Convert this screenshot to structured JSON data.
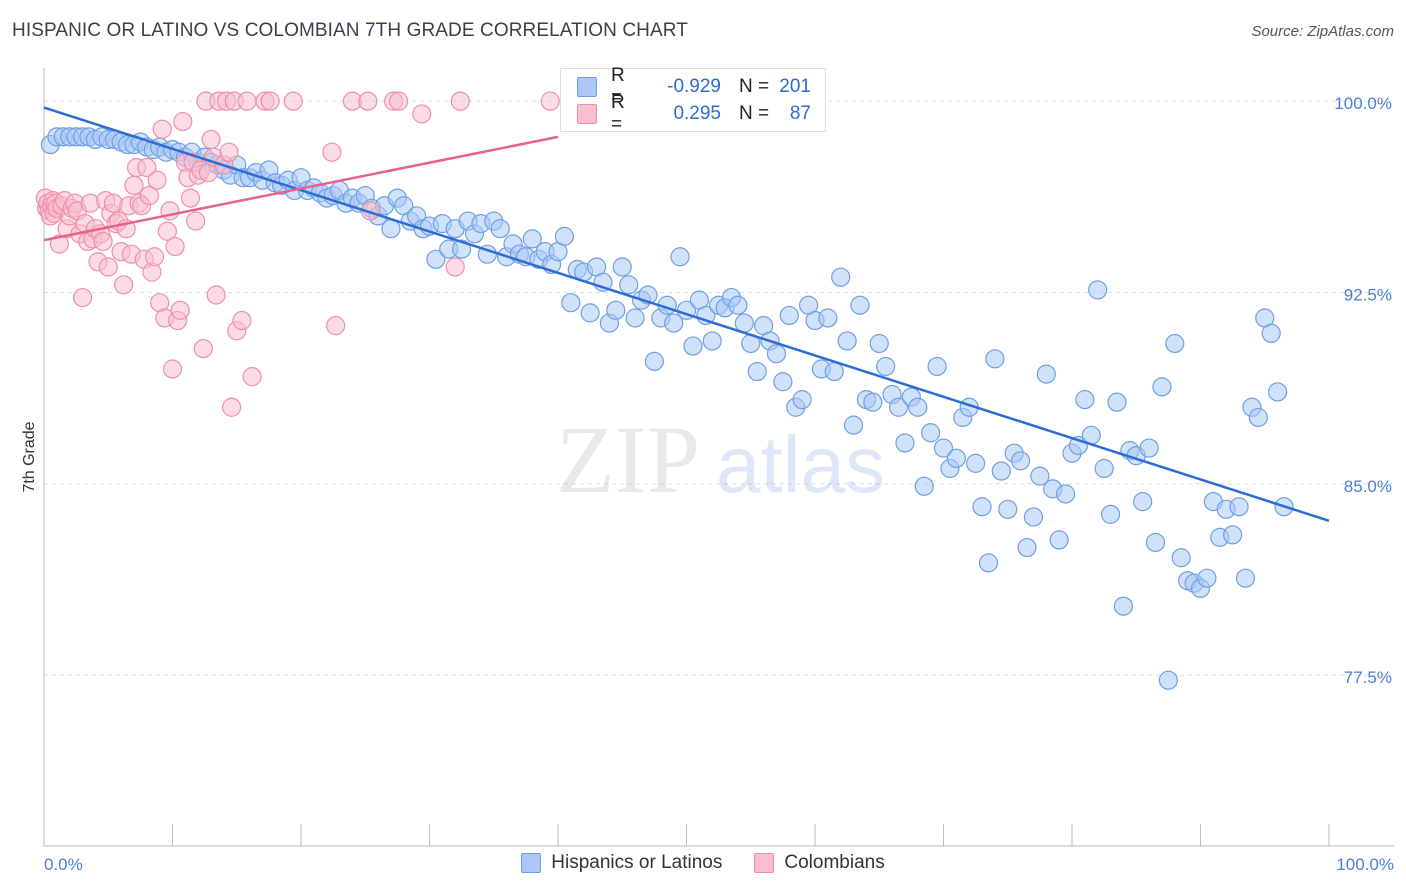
{
  "title": "HISPANIC OR LATINO VS COLOMBIAN 7TH GRADE CORRELATION CHART",
  "source": "Source: ZipAtlas.com",
  "watermark": {
    "zip": "ZIP",
    "atlas": "atlas"
  },
  "legend": {
    "rows": [
      {
        "r_label": "R =",
        "r_value": "-0.929",
        "n_label": "N =",
        "n_value": "201",
        "color": "#a9c8f5",
        "border": "#6f9fe3"
      },
      {
        "r_label": "R =",
        "r_value": "0.295",
        "n_label": "N =",
        "n_value": "87",
        "color": "#f8bfd0",
        "border": "#ee8fab"
      }
    ]
  },
  "bottom_legend": [
    {
      "label": "Hispanics or Latinos",
      "color": "#a9c8f5",
      "border": "#6f9fe3"
    },
    {
      "label": "Colombians",
      "color": "#f8bfd0",
      "border": "#ee8fab"
    }
  ],
  "chart_data": {
    "type": "scatter",
    "title": "HISPANIC OR LATINO VS COLOMBIAN 7TH GRADE CORRELATION CHART",
    "xlabel": "",
    "ylabel": "7th Grade",
    "xlim": [
      0,
      100
    ],
    "ylim": [
      70.8,
      101.3
    ],
    "x_tick_labels": [
      "0.0%",
      "100.0%"
    ],
    "y_ticks": [
      {
        "value": 100.0,
        "label": "100.0%"
      },
      {
        "value": 92.5,
        "label": "92.5%"
      },
      {
        "value": 85.0,
        "label": "85.0%"
      },
      {
        "value": 77.5,
        "label": "77.5%"
      }
    ],
    "grid": true,
    "series": [
      {
        "name": "Hispanics or Latinos",
        "color": "#a9c8f5",
        "stroke": "#6f9fe3",
        "trend": {
          "x": [
            0,
            100
          ],
          "y": [
            99.75,
            83.55
          ],
          "color": "#2d6cd3"
        },
        "points": [
          [
            0.5,
            98.3
          ],
          [
            1,
            98.6
          ],
          [
            1.5,
            98.6
          ],
          [
            2,
            98.6
          ],
          [
            2.5,
            98.6
          ],
          [
            3,
            98.6
          ],
          [
            3.5,
            98.6
          ],
          [
            4,
            98.5
          ],
          [
            4.5,
            98.6
          ],
          [
            5,
            98.5
          ],
          [
            5.5,
            98.5
          ],
          [
            6,
            98.4
          ],
          [
            6.5,
            98.3
          ],
          [
            7,
            98.3
          ],
          [
            7.5,
            98.4
          ],
          [
            8,
            98.2
          ],
          [
            8.5,
            98.1
          ],
          [
            9,
            98.2
          ],
          [
            9.5,
            98.0
          ],
          [
            10,
            98.1
          ],
          [
            10.5,
            98.0
          ],
          [
            11,
            97.8
          ],
          [
            11.5,
            98.0
          ],
          [
            12,
            97.6
          ],
          [
            12.5,
            97.8
          ],
          [
            13,
            97.6
          ],
          [
            13.5,
            97.5
          ],
          [
            14,
            97.3
          ],
          [
            14.5,
            97.1
          ],
          [
            15,
            97.5
          ],
          [
            15.5,
            97.0
          ],
          [
            16,
            97.0
          ],
          [
            16.5,
            97.2
          ],
          [
            17,
            96.9
          ],
          [
            17.5,
            97.3
          ],
          [
            18,
            96.8
          ],
          [
            18.5,
            96.7
          ],
          [
            19,
            96.9
          ],
          [
            19.5,
            96.5
          ],
          [
            20,
            97.0
          ],
          [
            20.5,
            96.5
          ],
          [
            21,
            96.6
          ],
          [
            21.5,
            96.4
          ],
          [
            22,
            96.2
          ],
          [
            22.5,
            96.3
          ],
          [
            23,
            96.5
          ],
          [
            23.5,
            96.0
          ],
          [
            24,
            96.2
          ],
          [
            24.5,
            96.0
          ],
          [
            25,
            96.3
          ],
          [
            25.5,
            95.8
          ],
          [
            26,
            95.5
          ],
          [
            26.5,
            95.9
          ],
          [
            27,
            95.0
          ],
          [
            27.5,
            96.2
          ],
          [
            28,
            95.9
          ],
          [
            28.5,
            95.3
          ],
          [
            29,
            95.5
          ],
          [
            29.5,
            95.0
          ],
          [
            30,
            95.1
          ],
          [
            30.5,
            93.8
          ],
          [
            31,
            95.2
          ],
          [
            31.5,
            94.2
          ],
          [
            32,
            95.0
          ],
          [
            32.5,
            94.2
          ],
          [
            33,
            95.3
          ],
          [
            33.5,
            94.8
          ],
          [
            34,
            95.2
          ],
          [
            34.5,
            94.0
          ],
          [
            35,
            95.3
          ],
          [
            35.5,
            95.0
          ],
          [
            36,
            93.9
          ],
          [
            36.5,
            94.4
          ],
          [
            37,
            94.0
          ],
          [
            37.5,
            93.9
          ],
          [
            38,
            94.6
          ],
          [
            38.5,
            93.8
          ],
          [
            39,
            94.1
          ],
          [
            39.5,
            93.6
          ],
          [
            40,
            94.1
          ],
          [
            40.5,
            94.7
          ],
          [
            41,
            92.1
          ],
          [
            41.5,
            93.4
          ],
          [
            42,
            93.3
          ],
          [
            42.5,
            91.7
          ],
          [
            43,
            93.5
          ],
          [
            43.5,
            92.9
          ],
          [
            44,
            91.3
          ],
          [
            44.5,
            91.8
          ],
          [
            45,
            93.5
          ],
          [
            45.5,
            92.8
          ],
          [
            46,
            91.5
          ],
          [
            46.5,
            92.2
          ],
          [
            47,
            92.4
          ],
          [
            47.5,
            89.8
          ],
          [
            48,
            91.5
          ],
          [
            48.5,
            92.0
          ],
          [
            49,
            91.3
          ],
          [
            49.5,
            93.9
          ],
          [
            50,
            91.8
          ],
          [
            50.5,
            90.4
          ],
          [
            51,
            92.2
          ],
          [
            51.5,
            91.6
          ],
          [
            52,
            90.6
          ],
          [
            52.5,
            92.0
          ],
          [
            53,
            91.9
          ],
          [
            53.5,
            92.3
          ],
          [
            54,
            92.0
          ],
          [
            54.5,
            91.3
          ],
          [
            55,
            90.5
          ],
          [
            55.5,
            89.4
          ],
          [
            56,
            91.2
          ],
          [
            56.5,
            90.6
          ],
          [
            57,
            90.1
          ],
          [
            57.5,
            89.0
          ],
          [
            58,
            91.6
          ],
          [
            58.5,
            88.0
          ],
          [
            59,
            88.3
          ],
          [
            59.5,
            92.0
          ],
          [
            60,
            91.4
          ],
          [
            60.5,
            89.5
          ],
          [
            61,
            91.5
          ],
          [
            61.5,
            89.4
          ],
          [
            62,
            93.1
          ],
          [
            62.5,
            90.6
          ],
          [
            63,
            87.3
          ],
          [
            63.5,
            92.0
          ],
          [
            64,
            88.3
          ],
          [
            64.5,
            88.2
          ],
          [
            65,
            90.5
          ],
          [
            65.5,
            89.6
          ],
          [
            66,
            88.5
          ],
          [
            66.5,
            88.0
          ],
          [
            67,
            86.6
          ],
          [
            67.5,
            88.4
          ],
          [
            68,
            88.0
          ],
          [
            68.5,
            84.9
          ],
          [
            69,
            87.0
          ],
          [
            69.5,
            89.6
          ],
          [
            70,
            86.4
          ],
          [
            70.5,
            85.6
          ],
          [
            71,
            86.0
          ],
          [
            71.5,
            87.6
          ],
          [
            72,
            88.0
          ],
          [
            72.5,
            85.8
          ],
          [
            73,
            84.1
          ],
          [
            73.5,
            81.9
          ],
          [
            74,
            89.9
          ],
          [
            74.5,
            85.5
          ],
          [
            75,
            84.0
          ],
          [
            75.5,
            86.2
          ],
          [
            76,
            85.9
          ],
          [
            76.5,
            82.5
          ],
          [
            77,
            83.7
          ],
          [
            77.5,
            85.3
          ],
          [
            78,
            89.3
          ],
          [
            78.5,
            84.8
          ],
          [
            79,
            82.8
          ],
          [
            79.5,
            84.6
          ],
          [
            80,
            86.2
          ],
          [
            80.5,
            86.5
          ],
          [
            81,
            88.3
          ],
          [
            81.5,
            86.9
          ],
          [
            82,
            92.6
          ],
          [
            82.5,
            85.6
          ],
          [
            83,
            83.8
          ],
          [
            83.5,
            88.2
          ],
          [
            84,
            80.2
          ],
          [
            84.5,
            86.3
          ],
          [
            85,
            86.1
          ],
          [
            85.5,
            84.3
          ],
          [
            86,
            86.4
          ],
          [
            86.5,
            82.7
          ],
          [
            87,
            88.8
          ],
          [
            87.5,
            77.3
          ],
          [
            88,
            90.5
          ],
          [
            88.5,
            82.1
          ],
          [
            89,
            81.2
          ],
          [
            89.5,
            81.1
          ],
          [
            90,
            80.9
          ],
          [
            90.5,
            81.3
          ],
          [
            91,
            84.3
          ],
          [
            91.5,
            82.9
          ],
          [
            92,
            84.0
          ],
          [
            92.5,
            83.0
          ],
          [
            93,
            84.1
          ],
          [
            93.5,
            81.3
          ],
          [
            94,
            88.0
          ],
          [
            94.5,
            87.6
          ],
          [
            95,
            91.5
          ],
          [
            95.5,
            90.9
          ],
          [
            96,
            88.6
          ],
          [
            96.5,
            84.1
          ]
        ]
      },
      {
        "name": "Colombians",
        "color": "#f8bfd0",
        "stroke": "#ee8fab",
        "trend": {
          "x": [
            0,
            40
          ],
          "y": [
            94.55,
            98.6
          ],
          "color": "#e8618a"
        },
        "points": [
          [
            0.1,
            96.2
          ],
          [
            0.2,
            95.8
          ],
          [
            0.3,
            96.0
          ],
          [
            0.4,
            95.7
          ],
          [
            0.5,
            95.5
          ],
          [
            0.6,
            95.9
          ],
          [
            0.7,
            96.1
          ],
          [
            0.8,
            95.6
          ],
          [
            0.9,
            96.0
          ],
          [
            1.0,
            95.8
          ],
          [
            1.2,
            94.4
          ],
          [
            1.4,
            95.9
          ],
          [
            1.6,
            96.1
          ],
          [
            1.8,
            95.0
          ],
          [
            2.0,
            95.5
          ],
          [
            2.2,
            95.8
          ],
          [
            2.4,
            96.0
          ],
          [
            2.6,
            95.7
          ],
          [
            2.8,
            94.8
          ],
          [
            3.0,
            92.3
          ],
          [
            3.2,
            95.2
          ],
          [
            3.4,
            94.5
          ],
          [
            3.6,
            96.0
          ],
          [
            3.8,
            94.6
          ],
          [
            4.0,
            95.0
          ],
          [
            4.2,
            93.7
          ],
          [
            4.4,
            94.8
          ],
          [
            4.6,
            94.5
          ],
          [
            4.8,
            96.1
          ],
          [
            5.0,
            93.5
          ],
          [
            5.2,
            95.6
          ],
          [
            5.4,
            96.0
          ],
          [
            5.6,
            95.2
          ],
          [
            5.8,
            95.3
          ],
          [
            6.0,
            94.1
          ],
          [
            6.2,
            92.8
          ],
          [
            6.4,
            95.0
          ],
          [
            6.6,
            95.9
          ],
          [
            6.8,
            94.0
          ],
          [
            7.0,
            96.7
          ],
          [
            7.2,
            97.4
          ],
          [
            7.4,
            96.0
          ],
          [
            7.6,
            95.9
          ],
          [
            7.8,
            93.8
          ],
          [
            8.0,
            97.4
          ],
          [
            8.2,
            96.3
          ],
          [
            8.4,
            93.3
          ],
          [
            8.6,
            93.9
          ],
          [
            8.8,
            96.9
          ],
          [
            9.0,
            92.1
          ],
          [
            9.2,
            98.9
          ],
          [
            9.4,
            91.5
          ],
          [
            9.6,
            94.9
          ],
          [
            9.8,
            95.7
          ],
          [
            10.0,
            89.5
          ],
          [
            10.2,
            94.3
          ],
          [
            10.4,
            91.4
          ],
          [
            10.6,
            91.8
          ],
          [
            10.8,
            99.2
          ],
          [
            11.0,
            97.6
          ],
          [
            11.2,
            97.0
          ],
          [
            11.4,
            96.2
          ],
          [
            11.6,
            97.6
          ],
          [
            11.8,
            95.3
          ],
          [
            12.0,
            97.1
          ],
          [
            12.2,
            97.3
          ],
          [
            12.4,
            90.3
          ],
          [
            12.6,
            100.0
          ],
          [
            12.8,
            97.2
          ],
          [
            13.0,
            98.5
          ],
          [
            13.2,
            97.8
          ],
          [
            13.4,
            92.4
          ],
          [
            13.6,
            100.0
          ],
          [
            14.0,
            97.5
          ],
          [
            14.2,
            100.0
          ],
          [
            14.4,
            98.0
          ],
          [
            14.6,
            88.0
          ],
          [
            14.8,
            100.0
          ],
          [
            15.0,
            91.0
          ],
          [
            15.4,
            91.4
          ],
          [
            15.8,
            100.0
          ],
          [
            16.2,
            89.2
          ],
          [
            17.2,
            100.0
          ],
          [
            17.6,
            100.0
          ],
          [
            19.4,
            100.0
          ],
          [
            22.4,
            98.0
          ],
          [
            22.7,
            91.2
          ],
          [
            24.0,
            100.0
          ],
          [
            25.2,
            100.0
          ],
          [
            25.4,
            95.7
          ],
          [
            27.2,
            100.0
          ],
          [
            27.6,
            100.0
          ],
          [
            29.4,
            99.5
          ],
          [
            32.0,
            93.5
          ],
          [
            32.4,
            100.0
          ],
          [
            39.4,
            100.0
          ]
        ]
      }
    ]
  }
}
